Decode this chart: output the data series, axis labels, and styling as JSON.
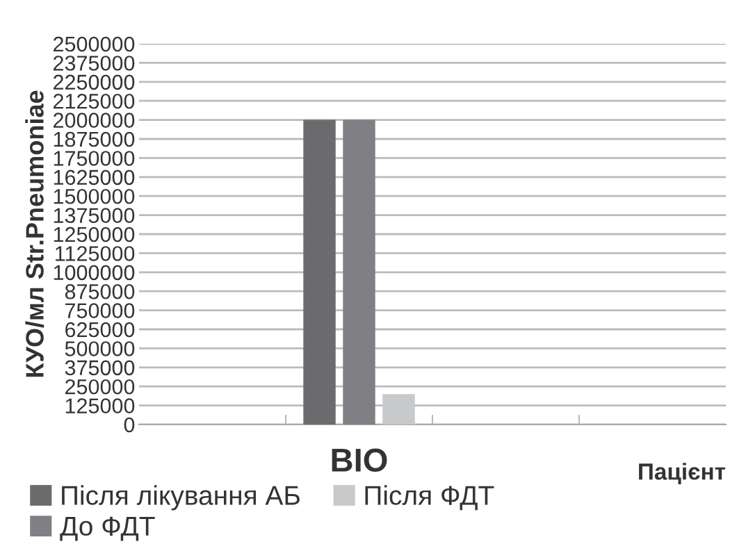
{
  "chart_data": {
    "type": "bar",
    "categories": [
      null,
      "ВІО",
      null,
      null
    ],
    "series": [
      {
        "name": "Після лікування АБ",
        "color": "#6b6b6e",
        "values": [
          null,
          2000000,
          null,
          null
        ]
      },
      {
        "name": "До ФДТ",
        "color": "#808084",
        "values": [
          null,
          2000000,
          null,
          null
        ]
      },
      {
        "name": "Після ФДТ",
        "color": "#c8c9cb",
        "values": [
          null,
          200000,
          null,
          null
        ]
      }
    ],
    "xlabel": "Пацієнт",
    "ylabel": "КУО/мл Str.Pneumoniae",
    "ylim": [
      0,
      2500000
    ],
    "yticks": [
      0,
      125000,
      250000,
      375000,
      500000,
      625000,
      750000,
      875000,
      1000000,
      1125000,
      1250000,
      1375000,
      1500000,
      1625000,
      1750000,
      1875000,
      2000000,
      2125000,
      2250000,
      2375000,
      2500000
    ],
    "grid": "y",
    "legend": "bottom left"
  }
}
